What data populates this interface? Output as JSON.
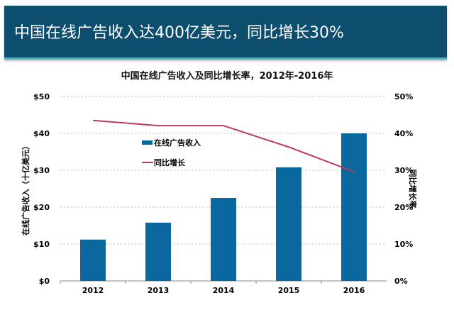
{
  "header": {
    "title": "中国在线广告收入达400亿美元，同比增长30%"
  },
  "colors": {
    "header_bg": "#0d4d6e",
    "bar": "#0a689e",
    "line": "#c0395f"
  },
  "chart_data": {
    "type": "bar+line",
    "title": "中国在线广告收入及同比增长率，2012年-2016年",
    "categories": [
      "2012",
      "2013",
      "2014",
      "2015",
      "2016"
    ],
    "ylabel": "在线广告收入（十亿美元）",
    "y2label": "同比增长率",
    "ylim": [
      0,
      50
    ],
    "y2lim": [
      0,
      50
    ],
    "yticks": [
      "$0",
      "$10",
      "$20",
      "$30",
      "$40",
      "$50"
    ],
    "y2ticks": [
      "0%",
      "10%",
      "20%",
      "30%",
      "40%",
      "50%"
    ],
    "grid": true,
    "legend_position": "upper-left-center",
    "series": [
      {
        "name": "在线广告收入",
        "type": "bar",
        "axis": "left",
        "values": [
          11.2,
          15.8,
          22.5,
          30.8,
          40.0
        ]
      },
      {
        "name": "同比增长",
        "type": "line",
        "axis": "right",
        "values": [
          43.5,
          42.1,
          42.1,
          36.3,
          29.6
        ]
      }
    ]
  }
}
